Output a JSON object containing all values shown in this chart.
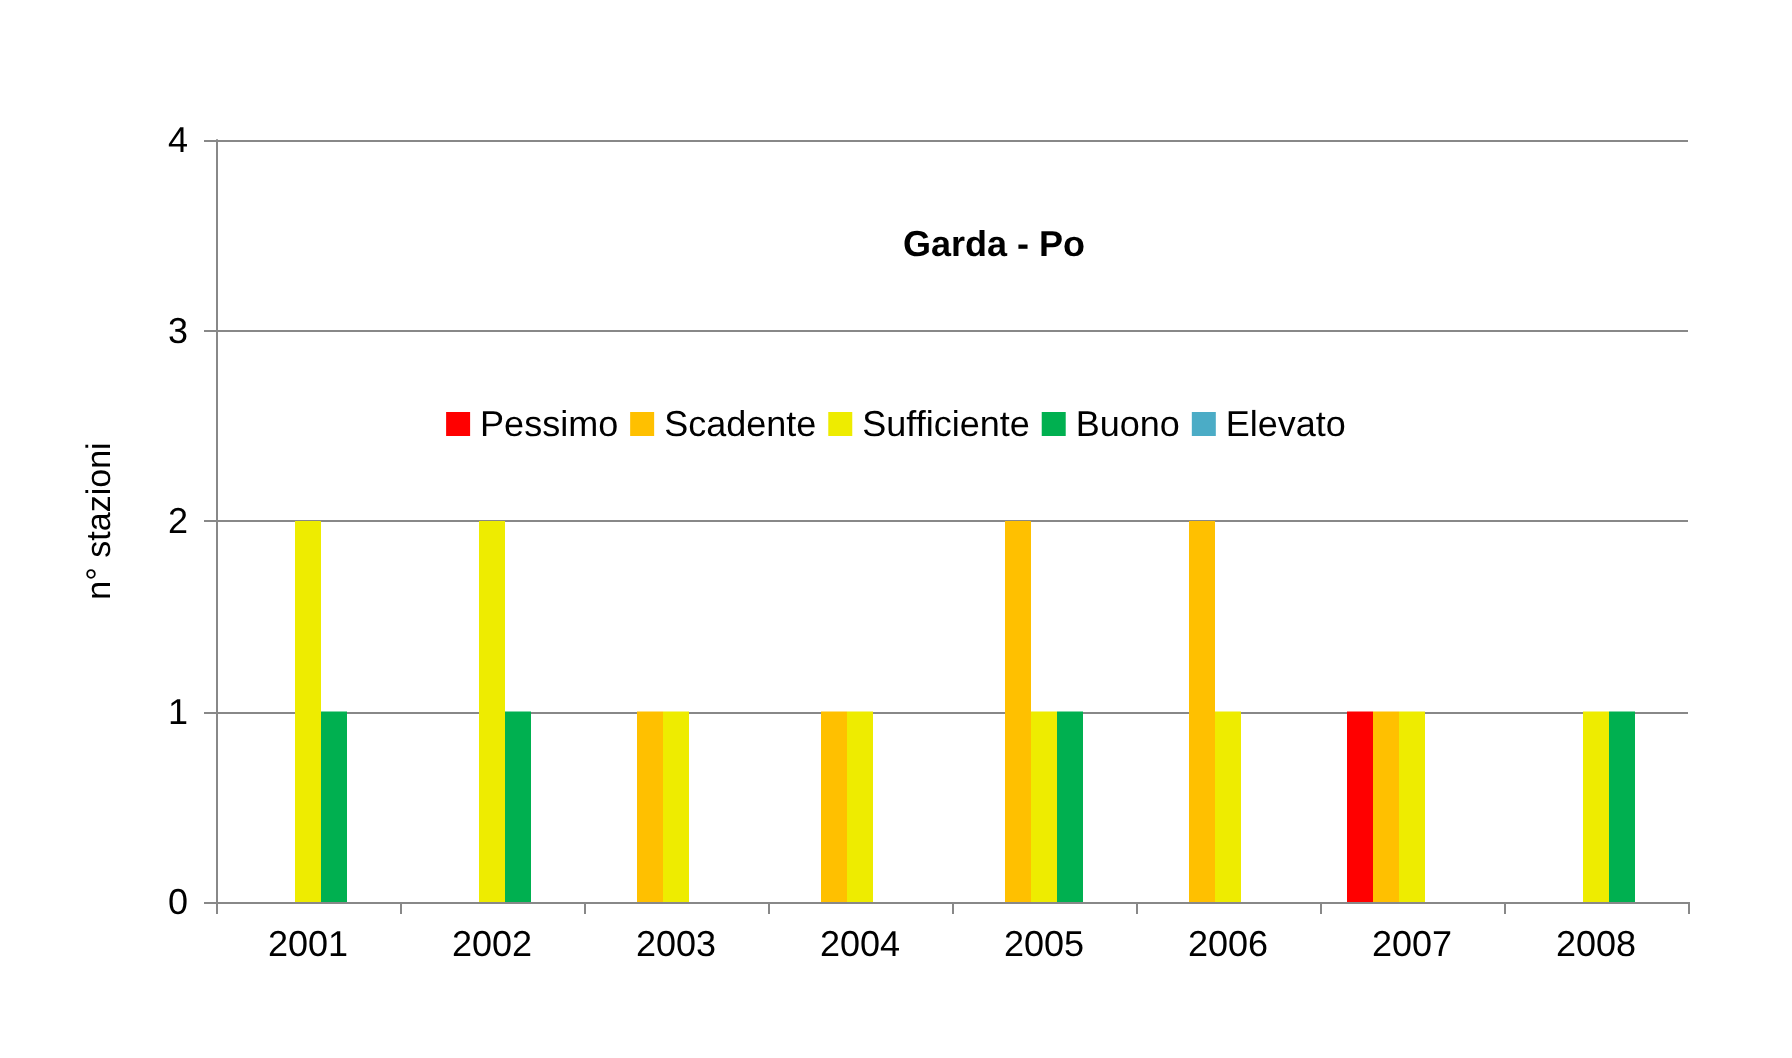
{
  "chart_data": {
    "type": "bar",
    "title": "Garda - Po",
    "ylabel": "n° stazioni",
    "categories": [
      "2001",
      "2002",
      "2003",
      "2004",
      "2005",
      "2006",
      "2007",
      "2008"
    ],
    "series": [
      {
        "name": "Pessimo",
        "color": "#ff0000",
        "values": [
          0,
          0,
          0,
          0,
          0,
          0,
          1,
          0
        ]
      },
      {
        "name": "Scadente",
        "color": "#ffc000",
        "values": [
          0,
          0,
          1,
          1,
          2,
          2,
          1,
          0
        ]
      },
      {
        "name": "Sufficiente",
        "color": "#eeec00",
        "values": [
          2,
          2,
          1,
          1,
          1,
          1,
          1,
          1
        ]
      },
      {
        "name": "Buono",
        "color": "#00b050",
        "values": [
          1,
          1,
          0,
          0,
          1,
          0,
          0,
          1
        ]
      },
      {
        "name": "Elevato",
        "color": "#4bacc6",
        "values": [
          0,
          0,
          0,
          0,
          0,
          0,
          0,
          0
        ]
      }
    ],
    "ylim": [
      0,
      4
    ],
    "yticks": [
      0,
      1,
      2,
      3,
      4
    ],
    "grid": "y",
    "legend": "top"
  }
}
